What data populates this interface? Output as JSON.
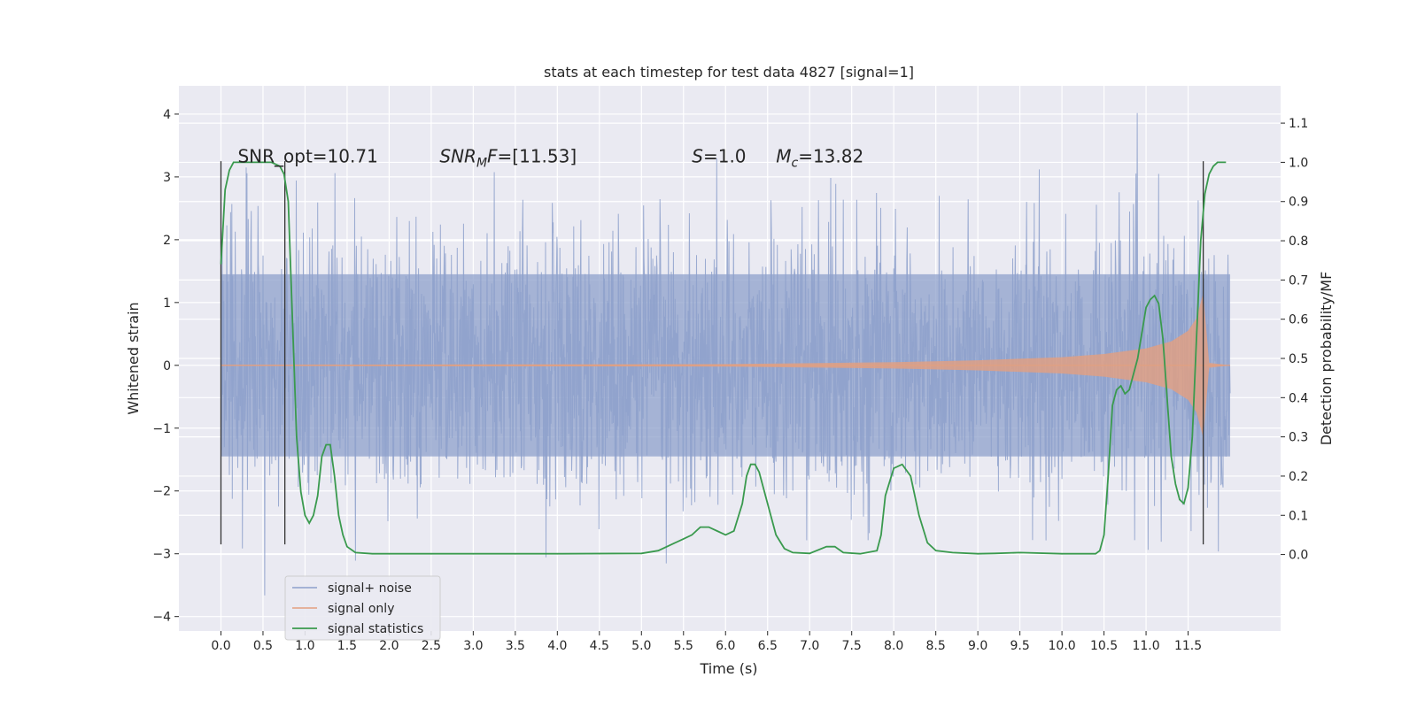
{
  "chart_data": {
    "type": "line",
    "title": "stats at each timestep for test data 4827 [signal=1]",
    "xlabel": "Time (s)",
    "ylabel_left": "Whitened strain",
    "ylabel_right": "Detection probability/MF",
    "xlim": [
      -0.5,
      12.6
    ],
    "ylim_left": [
      -4.23,
      4.45
    ],
    "ylim_right": [
      -0.195,
      1.195
    ],
    "grid": true,
    "legend_position": "lower-left",
    "x_ticks": [
      "0.0",
      "0.5",
      "1.0",
      "1.5",
      "2.0",
      "2.5",
      "3.0",
      "3.5",
      "4.0",
      "4.5",
      "5.0",
      "5.5",
      "6.0",
      "6.5",
      "7.0",
      "7.5",
      "8.0",
      "8.5",
      "9.0",
      "9.5",
      "10.0",
      "10.5",
      "11.0",
      "11.5"
    ],
    "y_ticks_left": [
      "4",
      "3",
      "2",
      "1",
      "0",
      "−1",
      "−2",
      "−3",
      "−4"
    ],
    "y_ticks_right": [
      "1.1",
      "1.0",
      "0.9",
      "0.8",
      "0.7",
      "0.6",
      "0.5",
      "0.4",
      "0.3",
      "0.2",
      "0.1",
      "0.0"
    ],
    "annotations": [
      {
        "text": "SNR_opt=10.71",
        "x": 0.2,
        "y": 3.2
      },
      {
        "text": "SNR_MF=[11.53]",
        "x": 2.6,
        "y": 3.2
      },
      {
        "text": "S=1.0",
        "x": 5.6,
        "y": 3.2
      },
      {
        "text": "M_c=13.82",
        "x": 6.6,
        "y": 3.2
      }
    ],
    "vlines": [
      0.0,
      0.76,
      11.68
    ],
    "series": [
      {
        "name": "signal+ noise",
        "color": "#8da0cb",
        "axis": "left",
        "x_range": [
          0.0,
          12.0
        ],
        "envelope_typical": 1.45,
        "peak_max": 4.1,
        "peak_min": -3.7
      },
      {
        "name": "signal only",
        "color": "#e39f7f",
        "axis": "left",
        "envelope_x": [
          0.0,
          6.0,
          8.0,
          9.0,
          10.0,
          10.5,
          11.0,
          11.3,
          11.5,
          11.6,
          11.68,
          11.75,
          12.0
        ],
        "envelope_amp": [
          0.01,
          0.02,
          0.05,
          0.08,
          0.13,
          0.18,
          0.27,
          0.38,
          0.55,
          0.75,
          1.15,
          0.04,
          0.0
        ]
      },
      {
        "name": "signal statistics",
        "color": "#3a9a4e",
        "axis": "right",
        "x": [
          0.0,
          0.05,
          0.1,
          0.15,
          0.2,
          0.3,
          0.4,
          0.5,
          0.6,
          0.7,
          0.75,
          0.8,
          0.85,
          0.9,
          0.95,
          1.0,
          1.05,
          1.1,
          1.15,
          1.2,
          1.25,
          1.3,
          1.35,
          1.4,
          1.45,
          1.5,
          1.6,
          1.8,
          2.0,
          3.0,
          4.0,
          5.0,
          5.2,
          5.4,
          5.5,
          5.6,
          5.7,
          5.8,
          5.9,
          6.0,
          6.1,
          6.2,
          6.25,
          6.3,
          6.35,
          6.4,
          6.5,
          6.6,
          6.7,
          6.8,
          7.0,
          7.2,
          7.3,
          7.4,
          7.6,
          7.8,
          7.85,
          7.9,
          8.0,
          8.1,
          8.2,
          8.3,
          8.4,
          8.5,
          8.7,
          9.0,
          9.2,
          9.5,
          10.0,
          10.4,
          10.45,
          10.5,
          10.55,
          10.6,
          10.65,
          10.7,
          10.75,
          10.8,
          10.9,
          11.0,
          11.05,
          11.1,
          11.15,
          11.2,
          11.25,
          11.3,
          11.35,
          11.4,
          11.45,
          11.5,
          11.55,
          11.6,
          11.65,
          11.7,
          11.75,
          11.8,
          11.85,
          11.9,
          11.95
        ],
        "y": [
          0.74,
          0.93,
          0.98,
          1.0,
          1.0,
          1.0,
          1.0,
          1.0,
          1.0,
          0.99,
          0.97,
          0.9,
          0.6,
          0.3,
          0.16,
          0.1,
          0.08,
          0.1,
          0.15,
          0.25,
          0.28,
          0.28,
          0.2,
          0.1,
          0.05,
          0.02,
          0.005,
          0.002,
          0.002,
          0.002,
          0.002,
          0.003,
          0.01,
          0.03,
          0.04,
          0.05,
          0.07,
          0.07,
          0.06,
          0.05,
          0.06,
          0.13,
          0.2,
          0.23,
          0.23,
          0.21,
          0.13,
          0.05,
          0.015,
          0.005,
          0.003,
          0.02,
          0.02,
          0.005,
          0.002,
          0.01,
          0.05,
          0.15,
          0.22,
          0.23,
          0.2,
          0.1,
          0.03,
          0.01,
          0.005,
          0.002,
          0.003,
          0.005,
          0.002,
          0.002,
          0.01,
          0.05,
          0.2,
          0.38,
          0.42,
          0.43,
          0.41,
          0.42,
          0.5,
          0.63,
          0.65,
          0.66,
          0.64,
          0.55,
          0.4,
          0.25,
          0.18,
          0.14,
          0.13,
          0.17,
          0.3,
          0.55,
          0.8,
          0.92,
          0.97,
          0.99,
          1.0,
          1.0,
          1.0
        ]
      }
    ]
  }
}
